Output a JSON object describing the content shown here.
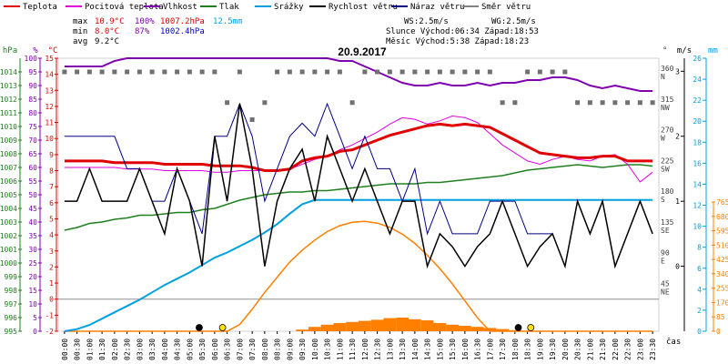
{
  "chart_data": {
    "type": "line",
    "title": "20.9.2017",
    "x": [
      "00:00",
      "00:30",
      "01:00",
      "01:30",
      "02:00",
      "02:30",
      "03:00",
      "03:30",
      "04:00",
      "04:30",
      "05:00",
      "05:30",
      "06:00",
      "06:30",
      "07:00",
      "07:30",
      "08:00",
      "08:30",
      "09:00",
      "09:30",
      "10:00",
      "10:30",
      "11:00",
      "11:30",
      "12:00",
      "12:30",
      "13:00",
      "13:30",
      "14:00",
      "14:30",
      "15:00",
      "15:30",
      "16:00",
      "16:30",
      "17:00",
      "17:30",
      "18:00",
      "18:30",
      "19:00",
      "19:30",
      "20:00",
      "20:30",
      "21:00",
      "21:30",
      "22:00",
      "22:30",
      "23:00",
      "23:30"
    ],
    "xtick_labels": [
      "00:00",
      "00:30",
      "01:00",
      "01:30",
      "02:00",
      "02:30",
      "03:00",
      "03:30",
      "04:00",
      "04:30",
      "05:00",
      "05:30",
      "06:00",
      "06:30",
      "07:00",
      "07:30",
      "08:00",
      "08:30",
      "09:00",
      "09:30",
      "10:00",
      "10:30",
      "11:00",
      "11:30",
      "12:00",
      "12:30",
      "13:00",
      "13:30",
      "14:00",
      "14:30",
      "15:00",
      "15:30",
      "16:00",
      "16:30",
      "17:00",
      "17:30",
      "18:00",
      "18:30",
      "19:00",
      "19:30",
      "20:00",
      "20:30",
      "21:00",
      "21:30",
      "22:00",
      "22:30",
      "23:00",
      "23:30"
    ],
    "xlabel": "čas",
    "legend": [
      {
        "name": "Teplota",
        "color": "#e00000"
      },
      {
        "name": "Pocitová teplota",
        "color": "#e000e0"
      },
      {
        "name": "Vlhkost",
        "color": "#8000b0"
      },
      {
        "name": "Tlak",
        "color": "#208020"
      },
      {
        "name": "Srážky",
        "color": "#00a0e0"
      },
      {
        "name": "Rychlost větru",
        "color": "#000000"
      },
      {
        "name": "Náraz větru",
        "color": "#000080"
      },
      {
        "name": "Směr větru",
        "color": "#808080"
      }
    ],
    "stats": {
      "rows": [
        {
          "label": "max",
          "temp": "10.9°C",
          "hum": "100%",
          "press": "1007.2hPa",
          "rain": "12.5mm"
        },
        {
          "label": "min",
          "temp": "8.0°C",
          "hum": "87%",
          "press": "1002.4hPa",
          "rain": ""
        },
        {
          "label": "avg",
          "temp": "9.2°C",
          "hum": "",
          "press": "",
          "rain": ""
        }
      ],
      "ws": "WS:2.5m/s",
      "wg": "WG:2.5m/s",
      "sun": "Slunce Východ:06:34  Západ:18:53",
      "moon": "Měsíc  Východ:5:38  Západ:18:23"
    },
    "axes": {
      "hpa": {
        "unit": "hPa",
        "ylim": [
          995,
          1015
        ],
        "ticks": [
          "995",
          "996",
          "997",
          "998",
          "999",
          "1000",
          "1001",
          "1002",
          "1003",
          "1004",
          "1005",
          "1006",
          "1007",
          "1008",
          "1009",
          "1010",
          "1011",
          "1012",
          "1013",
          "1014"
        ]
      },
      "pct": {
        "unit": "%",
        "ylim": [
          0,
          100
        ],
        "ticks": [
          "0",
          "5",
          "10",
          "15",
          "20",
          "25",
          "30",
          "35",
          "40",
          "45",
          "50",
          "55",
          "60",
          "65",
          "70",
          "75",
          "80",
          "85",
          "90",
          "95",
          "100"
        ]
      },
      "temp": {
        "unit": "°C",
        "ylim": [
          -2,
          15
        ],
        "ticks": [
          "-2",
          "-1",
          "0",
          "1",
          "2",
          "3",
          "4",
          "5",
          "6",
          "7",
          "8",
          "9",
          "10",
          "11",
          "12",
          "13",
          "14",
          "15"
        ]
      },
      "dir": {
        "unit": "°",
        "ticks": [
          {
            "v": "360",
            "d": "N"
          },
          {
            "v": "315",
            "d": "NW"
          },
          {
            "v": "270",
            "d": "W"
          },
          {
            "v": "225",
            "d": "SW"
          },
          {
            "v": "180",
            "d": "S"
          },
          {
            "v": "135",
            "d": "SE"
          },
          {
            "v": "90",
            "d": "E"
          },
          {
            "v": "45",
            "d": "NE"
          }
        ]
      },
      "ms": {
        "unit": "m/s",
        "ticks": [
          "0",
          "1",
          "2",
          "3"
        ]
      },
      "mm": {
        "unit": "mm",
        "ylim": [
          0,
          26
        ],
        "ticks": [
          "0",
          "2",
          "4",
          "6",
          "8",
          "10",
          "12",
          "14",
          "16",
          "18",
          "20",
          "22",
          "24",
          "26"
        ]
      },
      "solar": {
        "ticks": [
          "0",
          "85",
          "170",
          "255",
          "340",
          "425",
          "510",
          "595",
          "680",
          "765"
        ]
      }
    },
    "series": [
      {
        "name": "Teplota",
        "unit": "°C",
        "values": [
          8.6,
          8.6,
          8.6,
          8.6,
          8.5,
          8.5,
          8.5,
          8.5,
          8.4,
          8.4,
          8.4,
          8.4,
          8.3,
          8.3,
          8.3,
          8.2,
          8.0,
          8.0,
          8.1,
          8.6,
          8.8,
          8.9,
          9.2,
          9.3,
          9.6,
          9.9,
          10.2,
          10.4,
          10.6,
          10.8,
          10.9,
          10.8,
          10.9,
          10.8,
          10.7,
          10.3,
          9.9,
          9.5,
          9.1,
          9.0,
          8.9,
          8.8,
          8.8,
          8.9,
          8.9,
          8.6,
          8.6,
          8.6
        ]
      },
      {
        "name": "Pocitová teplota",
        "unit": "°C",
        "values": [
          8.2,
          8.2,
          8.2,
          8.2,
          8.2,
          8.1,
          8.1,
          8.1,
          8.0,
          8.0,
          8.0,
          8.0,
          7.9,
          7.9,
          8.0,
          8.0,
          8.0,
          8.0,
          8.1,
          8.4,
          8.7,
          8.9,
          9.3,
          9.6,
          10.0,
          10.4,
          10.9,
          11.3,
          11.2,
          10.9,
          11.1,
          11.4,
          11.3,
          11.0,
          10.3,
          9.6,
          9.1,
          8.6,
          8.4,
          8.7,
          8.9,
          8.7,
          8.6,
          8.9,
          9.0,
          8.4,
          7.3,
          7.9
        ]
      },
      {
        "name": "Vlhkost",
        "unit": "%",
        "values": [
          97,
          97,
          97,
          97,
          99,
          100,
          100,
          100,
          100,
          100,
          100,
          100,
          100,
          100,
          100,
          100,
          100,
          100,
          100,
          100,
          100,
          100,
          99,
          99,
          97,
          95,
          93,
          91,
          90,
          90,
          91,
          90,
          90,
          91,
          90,
          91,
          91,
          92,
          92,
          93,
          93,
          92,
          90,
          89,
          90,
          89,
          88,
          88
        ]
      },
      {
        "name": "Tlak",
        "unit": "hPa",
        "values": [
          1002.4,
          1002.6,
          1002.9,
          1003.0,
          1003.2,
          1003.3,
          1003.5,
          1003.5,
          1003.6,
          1003.7,
          1003.7,
          1003.9,
          1004.0,
          1004.3,
          1004.6,
          1004.8,
          1005.0,
          1005.1,
          1005.2,
          1005.2,
          1005.3,
          1005.3,
          1005.4,
          1005.5,
          1005.6,
          1005.7,
          1005.8,
          1005.8,
          1005.8,
          1005.9,
          1005.9,
          1006.0,
          1006.1,
          1006.2,
          1006.3,
          1006.4,
          1006.6,
          1006.8,
          1006.9,
          1007.0,
          1007.1,
          1007.2,
          1007.1,
          1007.0,
          1007.1,
          1007.2,
          1007.2,
          1007.1
        ]
      },
      {
        "name": "Srážky",
        "unit": "mm",
        "values": [
          0.0,
          0.2,
          0.6,
          1.2,
          1.8,
          2.4,
          3.0,
          3.7,
          4.4,
          5.0,
          5.6,
          6.3,
          7.0,
          7.5,
          8.1,
          8.7,
          9.4,
          10.2,
          11.2,
          12.1,
          12.5,
          12.5,
          12.5,
          12.5,
          12.5,
          12.5,
          12.5,
          12.5,
          12.5,
          12.5,
          12.5,
          12.5,
          12.5,
          12.5,
          12.5,
          12.5,
          12.5,
          12.5,
          12.5,
          12.5,
          12.5,
          12.5,
          12.5,
          12.5,
          12.5,
          12.5,
          12.5,
          12.5
        ]
      },
      {
        "name": "Rychlost větru",
        "unit": "m/s",
        "values": [
          1.0,
          1.0,
          1.5,
          1.0,
          1.0,
          1.0,
          1.5,
          1.0,
          0.5,
          1.5,
          1.0,
          0.0,
          2.0,
          1.0,
          2.5,
          1.5,
          0.0,
          1.0,
          1.5,
          1.8,
          1.0,
          2.0,
          1.5,
          1.0,
          1.5,
          1.0,
          0.5,
          1.0,
          1.0,
          0.0,
          0.5,
          0.3,
          0.0,
          0.3,
          0.5,
          1.0,
          0.5,
          0.0,
          0.3,
          0.5,
          0.0,
          1.0,
          0.5,
          1.0,
          0.0,
          0.5,
          1.0,
          0.5
        ]
      },
      {
        "name": "Náraz větru",
        "unit": "m/s",
        "values": [
          2.0,
          2.0,
          2.0,
          2.0,
          2.0,
          1.5,
          1.5,
          1.0,
          1.0,
          1.5,
          1.0,
          0.5,
          2.0,
          2.0,
          2.5,
          2.0,
          1.0,
          1.5,
          2.0,
          2.2,
          2.0,
          2.5,
          2.0,
          1.5,
          2.0,
          1.5,
          1.5,
          1.0,
          1.5,
          0.5,
          1.0,
          0.5,
          0.5,
          0.5,
          1.0,
          1.0,
          1.0,
          0.5,
          0.5,
          0.5,
          0.0,
          1.0,
          0.5,
          1.0,
          0.0,
          0.5,
          1.0,
          0.5
        ]
      },
      {
        "name": "Směr větru",
        "unit": "°",
        "values": [
          360,
          360,
          360,
          360,
          360,
          360,
          360,
          360,
          360,
          360,
          360,
          360,
          360,
          315,
          360,
          290,
          315,
          360,
          360,
          360,
          360,
          360,
          360,
          315,
          360,
          360,
          360,
          360,
          360,
          360,
          360,
          360,
          360,
          360,
          360,
          315,
          315,
          360,
          360,
          360,
          360,
          315,
          315,
          315,
          315,
          315,
          315,
          315
        ]
      },
      {
        "name": "Sluneční záření",
        "unit": "W/m²",
        "values": [
          0,
          0,
          0,
          0,
          0,
          0,
          0,
          0,
          0,
          0,
          0,
          0,
          0,
          0,
          40,
          130,
          230,
          320,
          410,
          480,
          540,
          590,
          625,
          645,
          650,
          640,
          615,
          575,
          520,
          450,
          370,
          280,
          180,
          80,
          0,
          0,
          0,
          0,
          0,
          0,
          0,
          0,
          0,
          0,
          0,
          0,
          0,
          0
        ]
      }
    ],
    "rain_rate": [
      0,
      0,
      0,
      0,
      0,
      0,
      0,
      0,
      0,
      0,
      0,
      0,
      0,
      0,
      0,
      0,
      0,
      0,
      0,
      0.3,
      0.8,
      1.2,
      1.5,
      1.7,
      1.9,
      2.1,
      2.4,
      2.5,
      2.2,
      2.0,
      1.5,
      1.2,
      1.0,
      0.8,
      0.6,
      0.4,
      0.2,
      0,
      0,
      0,
      0,
      0,
      0,
      0,
      0,
      0,
      0,
      0
    ],
    "events": [
      {
        "type": "moon-rise",
        "time": "05:38"
      },
      {
        "type": "sun-rise",
        "time": "06:34"
      },
      {
        "type": "moon-set",
        "time": "18:23"
      },
      {
        "type": "sun-set",
        "time": "18:53"
      }
    ],
    "grid": false
  }
}
